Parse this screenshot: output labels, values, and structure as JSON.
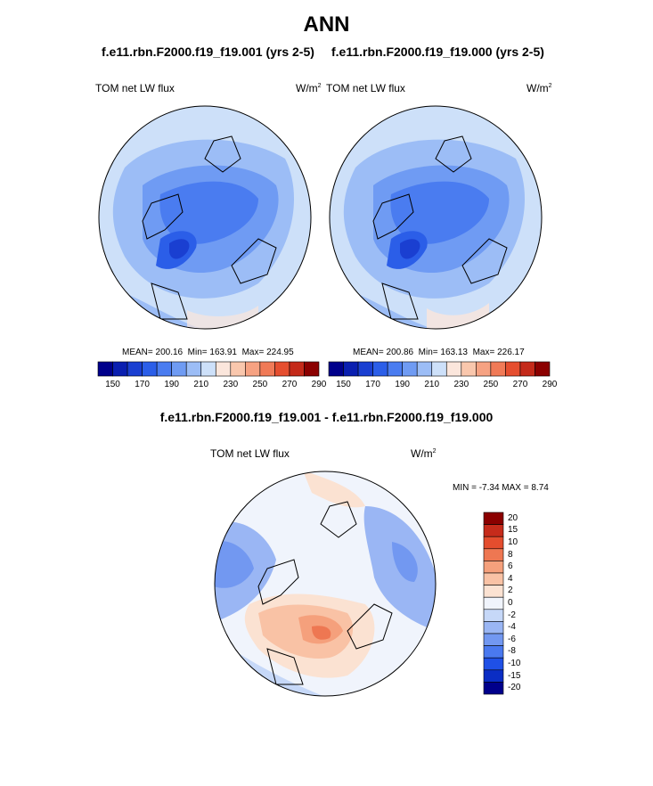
{
  "title": "ANN",
  "left_panel": {
    "case_title": "f.e11.rbn.F2000.f19_f19.001 (yrs 2-5)",
    "variable": "TOM net LW flux",
    "units_base": "W/m",
    "units_exp": "2",
    "mean_label": "MEAN= 200.16",
    "min_label": "Min= 163.91",
    "max_label": "Max= 224.95"
  },
  "right_panel": {
    "case_title": "f.e11.rbn.F2000.f19_f19.000 (yrs 2-5)",
    "variable": "TOM net LW flux",
    "units_base": "W/m",
    "units_exp": "2",
    "mean_label": "MEAN= 200.86",
    "min_label": "Min= 163.13",
    "max_label": "Max= 226.17"
  },
  "diff_panel": {
    "title": "f.e11.rbn.F2000.f19_f19.001 - f.e11.rbn.F2000.f19_f19.000",
    "variable": "TOM net LW flux",
    "units_base": "W/m",
    "units_exp": "2",
    "minmax_label": "MIN = -7.34 MAX = 8.74"
  },
  "abs_colorbar": {
    "colors": [
      "#00008b",
      "#0a1fb0",
      "#1a3fd1",
      "#2b5ee8",
      "#4a7cf0",
      "#6f9bf3",
      "#9cbdf6",
      "#cde0f9",
      "#fbe6dc",
      "#f9c7ad",
      "#f6a282",
      "#f07a57",
      "#e54e2f",
      "#c42a1a",
      "#8b0000"
    ],
    "ticks": [
      "150",
      "170",
      "190",
      "210",
      "230",
      "250",
      "270",
      "290"
    ]
  },
  "diff_colorbar": {
    "colors": [
      "#00008b",
      "#0a2dc4",
      "#1f50e6",
      "#4a79ef",
      "#7298f1",
      "#9ab6f4",
      "#c6d8f8",
      "#f0f4fc",
      "#fbe2d2",
      "#f9c2a5",
      "#f5a07c",
      "#ee7752",
      "#e44d2e",
      "#c62b1b",
      "#8b0000"
    ],
    "ticks": [
      "20",
      "15",
      "10",
      "8",
      "6",
      "4",
      "2",
      "0",
      "-2",
      "-4",
      "-6",
      "-8",
      "-10",
      "-15",
      "-20"
    ]
  },
  "map_colors": {
    "ocean_base": "#cde0f9",
    "mid_blue": "#9cbdf6",
    "blue": "#6f9bf3",
    "deep_blue": "#4a7cf0",
    "darker_blue": "#2b5ee8",
    "darkest_blue": "#1a3fd1",
    "diff_base": "#f0f4fc",
    "diff_light_blue": "#c6d8f8",
    "diff_blue": "#9ab6f4",
    "diff_mid_blue": "#7298f1",
    "diff_light_red": "#fbe2d2",
    "diff_red": "#f9c2a5",
    "diff_mid_red": "#f5a07c",
    "diff_dark_red": "#ee7752"
  }
}
